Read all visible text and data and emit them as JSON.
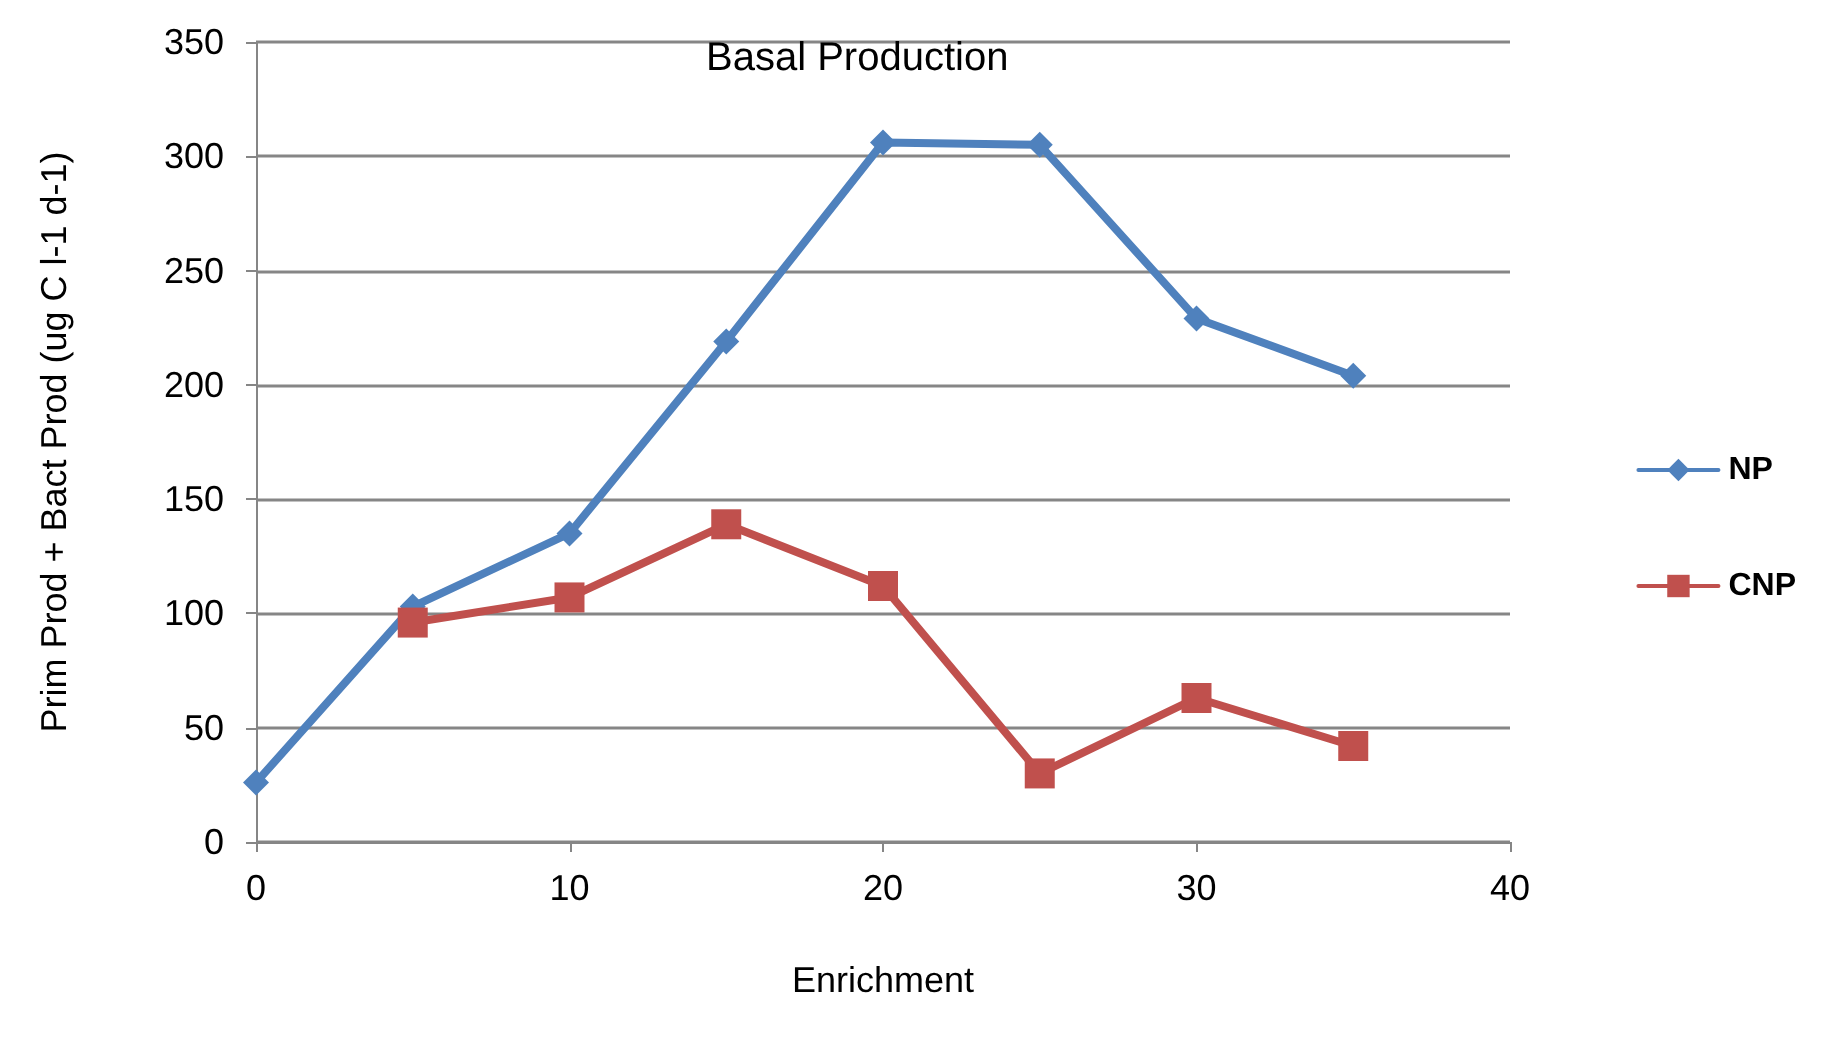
{
  "chart_data": {
    "type": "line",
    "title": "Basal Production",
    "xlabel": "Enrichment",
    "ylabel": "Prim Prod + Bact Prod (ug C l-1 d-1)",
    "xlim": [
      0,
      40
    ],
    "xticks": [
      0,
      10,
      20,
      30,
      40
    ],
    "ylim": [
      0,
      350
    ],
    "yticks": [
      0,
      50,
      100,
      150,
      200,
      250,
      300,
      350
    ],
    "grid": "y",
    "legend": "right",
    "series": [
      {
        "name": "NP",
        "color": "#4f81bd",
        "marker": "diamond",
        "x": [
          0,
          5,
          10,
          15,
          20,
          25,
          30,
          35
        ],
        "values": [
          26,
          103,
          135,
          219,
          306,
          305,
          229,
          204
        ]
      },
      {
        "name": "CNP",
        "color": "#c0504d",
        "marker": "square",
        "x": [
          5,
          10,
          15,
          20,
          25,
          30,
          35
        ],
        "values": [
          96,
          107,
          139,
          112,
          30,
          63,
          42
        ]
      }
    ]
  }
}
